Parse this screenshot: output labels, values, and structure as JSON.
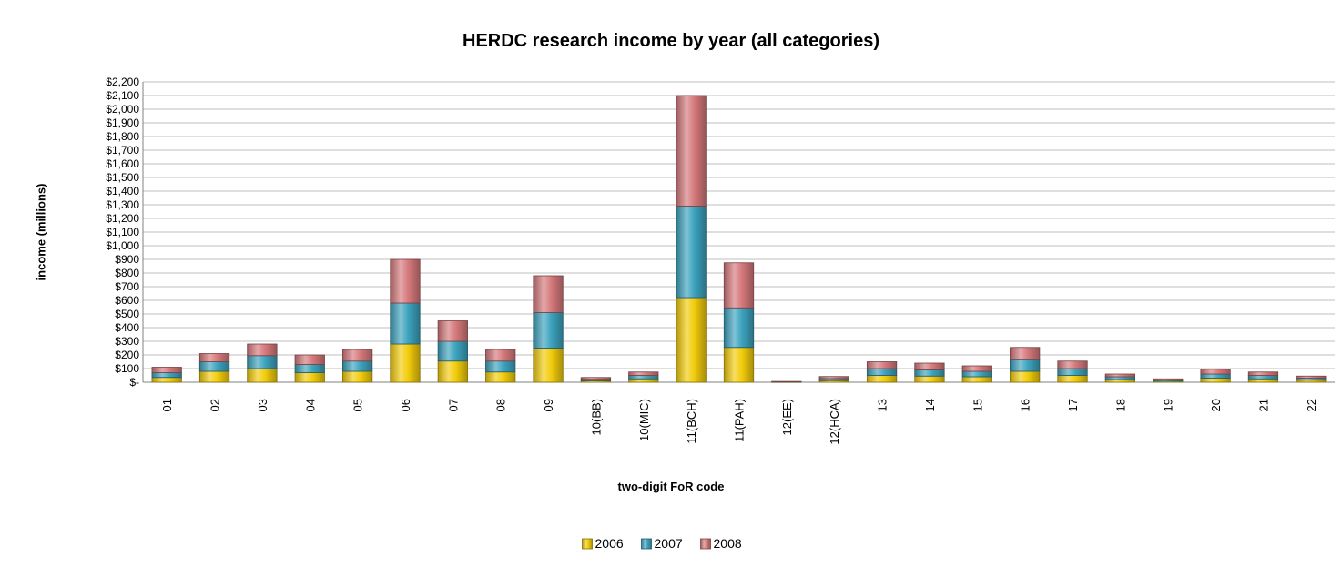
{
  "chart_data": {
    "type": "bar",
    "stacked": true,
    "title": "HERDC research income by year (all categories)",
    "xlabel": "two-digit FoR code",
    "ylabel": "income (millions)",
    "ylim": [
      0,
      2200
    ],
    "ytick_step": 100,
    "ytick_labels": [
      "$-",
      "$100",
      "$200",
      "$300",
      "$400",
      "$500",
      "$600",
      "$700",
      "$800",
      "$900",
      "$1,000",
      "$1,100",
      "$1,200",
      "$1,300",
      "$1,400",
      "$1,500",
      "$1,600",
      "$1,700",
      "$1,800",
      "$1,900",
      "$2,000",
      "$2,100",
      "$2,200"
    ],
    "grid": true,
    "legend_position": "bottom",
    "categories": [
      "01",
      "02",
      "03",
      "04",
      "05",
      "06",
      "07",
      "08",
      "09",
      "10(BB)",
      "10(MIC)",
      "11(BCH)",
      "11(PAH)",
      "12(EE)",
      "12(HCA)",
      "13",
      "14",
      "15",
      "16",
      "17",
      "18",
      "19",
      "20",
      "21",
      "22"
    ],
    "series": [
      {
        "name": "2006",
        "color": "#F2CC0C",
        "values": [
          35,
          80,
          100,
          70,
          80,
          280,
          155,
          75,
          250,
          10,
          25,
          620,
          255,
          2,
          12,
          50,
          45,
          40,
          80,
          50,
          20,
          8,
          30,
          25,
          15
        ]
      },
      {
        "name": "2007",
        "color": "#3DA3BE",
        "values": [
          35,
          70,
          95,
          60,
          75,
          300,
          145,
          80,
          260,
          12,
          25,
          670,
          290,
          2,
          15,
          50,
          45,
          40,
          85,
          50,
          20,
          8,
          30,
          25,
          15
        ]
      },
      {
        "name": "2008",
        "color": "#D6797C",
        "values": [
          40,
          60,
          85,
          70,
          85,
          320,
          150,
          85,
          270,
          13,
          25,
          810,
          330,
          2,
          15,
          50,
          50,
          40,
          90,
          55,
          20,
          9,
          35,
          25,
          15
        ]
      }
    ]
  }
}
